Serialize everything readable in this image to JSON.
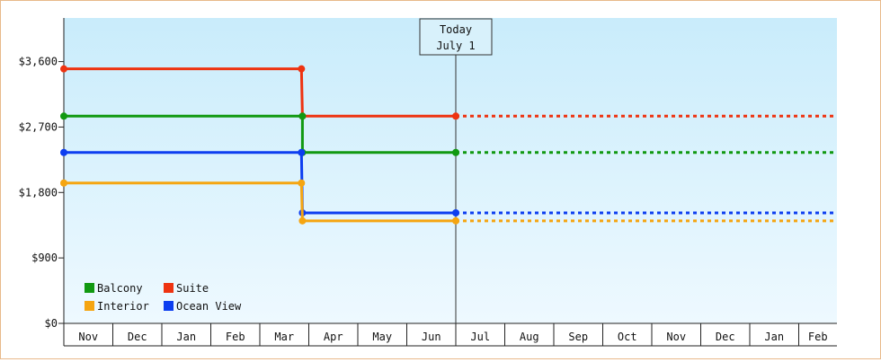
{
  "chart_data": {
    "type": "line",
    "step": true,
    "currency_prefix": "$",
    "y_ticks": [
      0,
      900,
      1800,
      2700,
      3600
    ],
    "y_tick_labels": [
      "$0",
      "$900",
      "$1,800",
      "$2,700",
      "$3,600"
    ],
    "ylim": [
      0,
      4200
    ],
    "x_months": [
      "Nov",
      "Dec",
      "Jan",
      "Feb",
      "Mar",
      "Apr",
      "May",
      "Jun",
      "Jul",
      "Aug",
      "Sep",
      "Oct",
      "Nov",
      "Dec",
      "Jan",
      "Feb"
    ],
    "today_marker": {
      "line1": "Today",
      "line2": "July 1",
      "at_month_index": 8.0
    },
    "series": [
      {
        "name": "Suite",
        "color": "#ee3311",
        "points": [
          {
            "m": 0.0,
            "v": 3500
          },
          {
            "m": 4.85,
            "v": 3500
          },
          {
            "m": 4.87,
            "v": 2850
          },
          {
            "m": 8.0,
            "v": 2850
          }
        ],
        "projection": 2850
      },
      {
        "name": "Balcony",
        "color": "#119911",
        "points": [
          {
            "m": 0.0,
            "v": 2850
          },
          {
            "m": 4.87,
            "v": 2850
          },
          {
            "m": 4.87,
            "v": 2350
          },
          {
            "m": 8.0,
            "v": 2350
          }
        ],
        "projection": 2350
      },
      {
        "name": "Ocean View",
        "color": "#0d3ef0",
        "points": [
          {
            "m": 0.0,
            "v": 2350
          },
          {
            "m": 4.85,
            "v": 2350
          },
          {
            "m": 4.87,
            "v": 1520
          },
          {
            "m": 8.0,
            "v": 1520
          }
        ],
        "projection": 1520
      },
      {
        "name": "Interior",
        "color": "#f5a511",
        "points": [
          {
            "m": 0.0,
            "v": 1930
          },
          {
            "m": 4.85,
            "v": 1930
          },
          {
            "m": 4.87,
            "v": 1410
          },
          {
            "m": 8.0,
            "v": 1410
          }
        ],
        "projection": 1410
      }
    ],
    "legend": {
      "placement": "bottom-left",
      "items": [
        {
          "name": "Balcony",
          "color": "#119911"
        },
        {
          "name": "Suite",
          "color": "#ee3311"
        },
        {
          "name": "Interior",
          "color": "#f5a511"
        },
        {
          "name": "Ocean View",
          "color": "#0d3ef0"
        }
      ]
    }
  }
}
